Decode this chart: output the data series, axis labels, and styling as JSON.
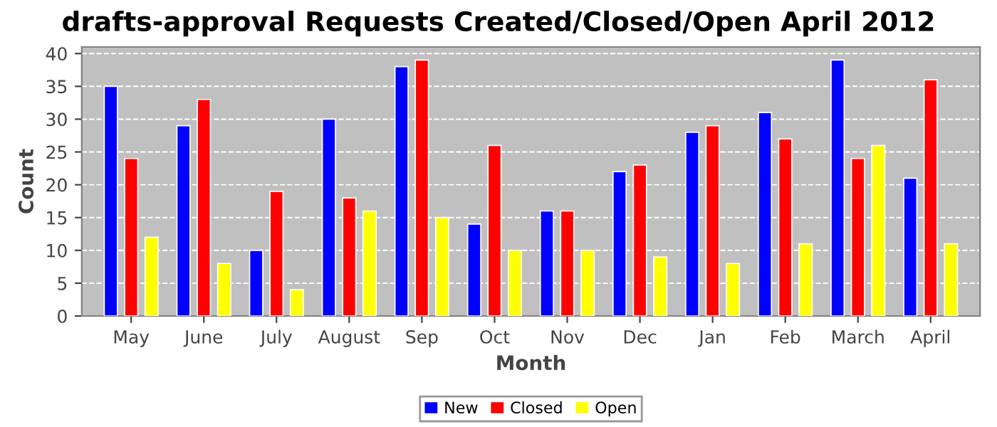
{
  "chart_data": {
    "type": "bar",
    "title": "drafts-approval Requests Created/Closed/Open April 2012",
    "xlabel": "Month",
    "ylabel": "Count",
    "categories": [
      "May",
      "June",
      "July",
      "August",
      "Sep",
      "Oct",
      "Nov",
      "Dec",
      "Jan",
      "Feb",
      "March",
      "April"
    ],
    "series": [
      {
        "name": "New",
        "color": "#0000ff",
        "values": [
          35,
          29,
          10,
          30,
          38,
          14,
          16,
          22,
          28,
          31,
          39,
          21
        ]
      },
      {
        "name": "Closed",
        "color": "#ff0000",
        "values": [
          24,
          33,
          19,
          18,
          39,
          26,
          16,
          23,
          29,
          27,
          24,
          36
        ]
      },
      {
        "name": "Open",
        "color": "#ffff00",
        "values": [
          12,
          8,
          4,
          16,
          15,
          10,
          10,
          9,
          8,
          11,
          26,
          11
        ]
      }
    ],
    "ylim": [
      0,
      41
    ],
    "yticks": [
      0,
      5,
      10,
      15,
      20,
      25,
      30,
      35,
      40
    ],
    "grid": "y",
    "legend": "bottom"
  }
}
